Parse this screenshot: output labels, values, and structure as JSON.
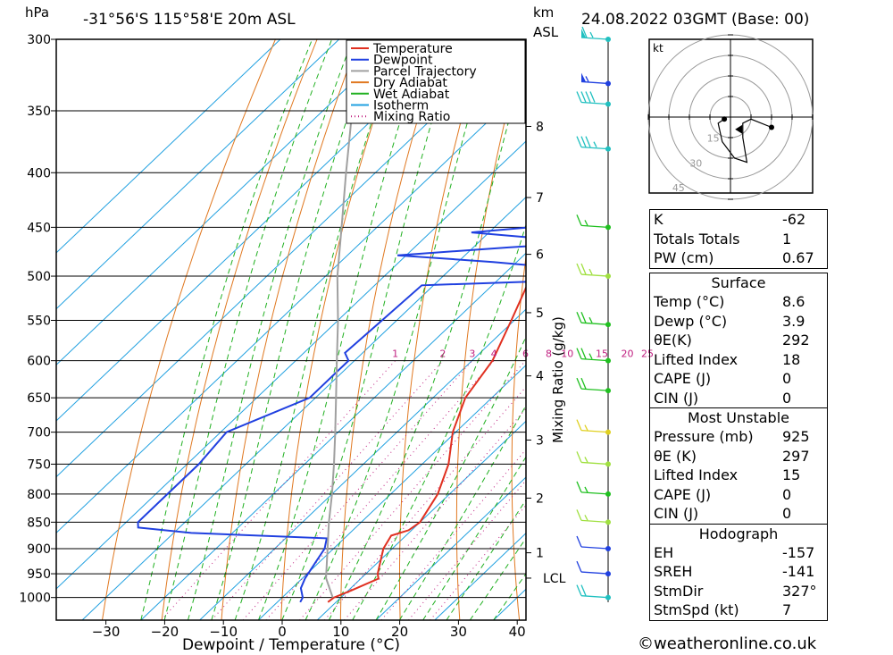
{
  "header": {
    "left_unit": "hPa",
    "location": "-31°56'S  115°58'E  20m  ASL",
    "km_unit": "km",
    "km_sub": "ASL",
    "datetime": "24.08.2022  03GMT  (Base: 00)"
  },
  "footer": {
    "copyright": "©weatheronline.co.uk"
  },
  "chart_data": {
    "type": "line",
    "title": "",
    "xlabel": "Dewpoint / Temperature (°C)",
    "ylabel": "hPa",
    "secondary_ylabel": "Mixing Ratio (g/kg)",
    "xlim": [
      -40,
      40
    ],
    "ylim": [
      1050,
      300
    ],
    "x_ticks": [
      "−30",
      "−20",
      "−10",
      "0",
      "10",
      "20",
      "30",
      "40"
    ],
    "x_tick_values": [
      -30,
      -20,
      -10,
      0,
      10,
      20,
      30,
      40
    ],
    "pressure_ticks": [
      300,
      350,
      400,
      450,
      500,
      550,
      600,
      650,
      700,
      750,
      800,
      850,
      900,
      950,
      1000
    ],
    "km_ticks": [
      {
        "label": "8",
        "p": 362
      },
      {
        "label": "7",
        "p": 422
      },
      {
        "label": "6",
        "p": 477
      },
      {
        "label": "5",
        "p": 541
      },
      {
        "label": "4",
        "p": 620
      },
      {
        "label": "3",
        "p": 712
      },
      {
        "label": "2",
        "p": 807
      },
      {
        "label": "1",
        "p": 908
      },
      {
        "label": "LCL",
        "p": 959
      }
    ],
    "mixing_ratio_labels": [
      "1",
      "2",
      "3",
      "4",
      "6",
      "8",
      "10",
      "15",
      "20",
      "25"
    ],
    "mixing_ratio_values": [
      1,
      2,
      3,
      4,
      6,
      8,
      10,
      15,
      20,
      25
    ],
    "legend": {
      "placement": "top",
      "entries": [
        {
          "name": "Temperature",
          "color": "#e03020",
          "style": "solid"
        },
        {
          "name": "Dewpoint",
          "color": "#2040e0",
          "style": "solid"
        },
        {
          "name": "Parcel Trajectory",
          "color": "#a0a0a0",
          "style": "solid"
        },
        {
          "name": "Dry Adiabat",
          "color": "#e07820",
          "style": "solid"
        },
        {
          "name": "Wet Adiabat",
          "color": "#20b020",
          "style": "solid"
        },
        {
          "name": "Isotherm",
          "color": "#20a0e0",
          "style": "solid"
        },
        {
          "name": "Mixing Ratio",
          "color": "#c02080",
          "style": "dotted"
        }
      ]
    },
    "series": [
      {
        "name": "Temperature",
        "color": "#e03020",
        "points": [
          {
            "p": 1010,
            "t": 8.6
          },
          {
            "p": 1000,
            "t": 8.8
          },
          {
            "p": 985,
            "t": 10.5
          },
          {
            "p": 960,
            "t": 13.0
          },
          {
            "p": 950,
            "t": 12.0
          },
          {
            "p": 900,
            "t": 8.5
          },
          {
            "p": 875,
            "t": 7.5
          },
          {
            "p": 865,
            "t": 9.5
          },
          {
            "p": 850,
            "t": 10.0
          },
          {
            "p": 800,
            "t": 8.0
          },
          {
            "p": 750,
            "t": 4.5
          },
          {
            "p": 700,
            "t": -0.5
          },
          {
            "p": 650,
            "t": -4.5
          },
          {
            "p": 600,
            "t": -6.5
          },
          {
            "p": 550,
            "t": -10.5
          },
          {
            "p": 500,
            "t": -15.0
          },
          {
            "p": 460,
            "t": -19.5
          },
          {
            "p": 450,
            "t": -19.5
          },
          {
            "p": 400,
            "t": -25.0
          },
          {
            "p": 350,
            "t": -33.0
          },
          {
            "p": 300,
            "t": -43.0
          }
        ]
      },
      {
        "name": "Dewpoint",
        "color": "#2040e0",
        "points": [
          {
            "p": 1010,
            "t": 3.9
          },
          {
            "p": 1000,
            "t": 3.5
          },
          {
            "p": 980,
            "t": 1.5
          },
          {
            "p": 960,
            "t": 0.5
          },
          {
            "p": 930,
            "t": -0.5
          },
          {
            "p": 900,
            "t": -1.5
          },
          {
            "p": 880,
            "t": -3.0
          },
          {
            "p": 870,
            "t": -27.0
          },
          {
            "p": 860,
            "t": -37.0
          },
          {
            "p": 850,
            "t": -38.0
          },
          {
            "p": 800,
            "t": -38.0
          },
          {
            "p": 750,
            "t": -38.0
          },
          {
            "p": 700,
            "t": -39.0
          },
          {
            "p": 650,
            "t": -31.0
          },
          {
            "p": 600,
            "t": -31.0
          },
          {
            "p": 590,
            "t": -33.0
          },
          {
            "p": 550,
            "t": -32.5
          },
          {
            "p": 510,
            "t": -32.0
          },
          {
            "p": 505,
            "t": -10.0
          },
          {
            "p": 495,
            "t": -4.5
          },
          {
            "p": 485,
            "t": -24.0
          },
          {
            "p": 478,
            "t": -41.5
          },
          {
            "p": 470,
            "t": -24.0
          },
          {
            "p": 465,
            "t": -11.5
          },
          {
            "p": 455,
            "t": -33.0
          },
          {
            "p": 450,
            "t": -24.0
          },
          {
            "p": 440,
            "t": -24.0
          },
          {
            "p": 400,
            "t": -30.0
          },
          {
            "p": 390,
            "t": -33.0
          },
          {
            "p": 350,
            "t": -38.0
          },
          {
            "p": 340,
            "t": -44.0
          },
          {
            "p": 300,
            "t": -60.0
          }
        ]
      },
      {
        "name": "Parcel Trajectory",
        "color": "#a0a0a0",
        "points": [
          {
            "p": 1000,
            "t": 8.6
          },
          {
            "p": 959,
            "t": 4.0
          },
          {
            "p": 900,
            "t": -1.0
          },
          {
            "p": 850,
            "t": -5.5
          },
          {
            "p": 800,
            "t": -10.0
          },
          {
            "p": 750,
            "t": -15.0
          },
          {
            "p": 700,
            "t": -20.5
          },
          {
            "p": 650,
            "t": -26.5
          },
          {
            "p": 600,
            "t": -33.0
          },
          {
            "p": 550,
            "t": -40.0
          },
          {
            "p": 500,
            "t": -48.0
          },
          {
            "p": 450,
            "t": -56.0
          },
          {
            "p": 400,
            "t": -65.0
          },
          {
            "p": 350,
            "t": -75.0
          },
          {
            "p": 300,
            "t": -86.0
          }
        ]
      }
    ],
    "wind_barbs": [
      {
        "p": 300,
        "speed_kt": 65,
        "color": "#20c0c0"
      },
      {
        "p": 330,
        "speed_kt": 55,
        "color": "#2040e0"
      },
      {
        "p": 345,
        "speed_kt": 40,
        "color": "#20c0c0"
      },
      {
        "p": 380,
        "speed_kt": 35,
        "color": "#20c0c0"
      },
      {
        "p": 450,
        "speed_kt": 15,
        "color": "#20c020"
      },
      {
        "p": 500,
        "speed_kt": 25,
        "color": "#a0e040"
      },
      {
        "p": 555,
        "speed_kt": 25,
        "color": "#20c020"
      },
      {
        "p": 600,
        "speed_kt": 25,
        "color": "#20c020"
      },
      {
        "p": 640,
        "speed_kt": 20,
        "color": "#20c020"
      },
      {
        "p": 700,
        "speed_kt": 15,
        "color": "#e0d020"
      },
      {
        "p": 750,
        "speed_kt": 15,
        "color": "#a0e040"
      },
      {
        "p": 800,
        "speed_kt": 15,
        "color": "#20c020"
      },
      {
        "p": 850,
        "speed_kt": 15,
        "color": "#a0e040"
      },
      {
        "p": 900,
        "speed_kt": 10,
        "color": "#2040e0"
      },
      {
        "p": 950,
        "speed_kt": 10,
        "color": "#2040e0"
      },
      {
        "p": 1000,
        "speed_kt": 20,
        "color": "#20c0c0"
      }
    ],
    "hodograph": {
      "unit": "kt",
      "ring_labels": [
        "15",
        "30",
        "45"
      ],
      "trace": [
        {
          "u": -3,
          "v": -1
        },
        {
          "u": -6,
          "v": -3
        },
        {
          "u": -4,
          "v": -12
        },
        {
          "u": 2,
          "v": -20
        },
        {
          "u": 8,
          "v": -22
        },
        {
          "u": 6,
          "v": -10
        },
        {
          "u": 6,
          "v": -3
        },
        {
          "u": 10,
          "v": -1
        },
        {
          "u": 20,
          "v": -5
        }
      ],
      "storm_motion_marker": {
        "u": 4,
        "v": -6
      }
    }
  },
  "indices": {
    "top": [
      {
        "label": "K",
        "value": "-62"
      },
      {
        "label": "Totals Totals",
        "value": "1"
      },
      {
        "label": "PW (cm)",
        "value": "0.67"
      }
    ],
    "surface": {
      "title": "Surface",
      "rows": [
        {
          "label": "Temp (°C)",
          "value": "8.6"
        },
        {
          "label": "Dewp (°C)",
          "value": "3.9"
        },
        {
          "label": "θE(K)",
          "value": "292"
        },
        {
          "label": "Lifted Index",
          "value": "18"
        },
        {
          "label": "CAPE (J)",
          "value": "0"
        },
        {
          "label": "CIN (J)",
          "value": "0"
        }
      ]
    },
    "most_unstable": {
      "title": "Most Unstable",
      "rows": [
        {
          "label": "Pressure (mb)",
          "value": "925"
        },
        {
          "label": "θE (K)",
          "value": "297"
        },
        {
          "label": "Lifted Index",
          "value": "15"
        },
        {
          "label": "CAPE (J)",
          "value": "0"
        },
        {
          "label": "CIN (J)",
          "value": "0"
        }
      ]
    },
    "hodograph_block": {
      "title": "Hodograph",
      "rows": [
        {
          "label": "EH",
          "value": "-157"
        },
        {
          "label": "SREH",
          "value": "-141"
        },
        {
          "label": "StmDir",
          "value": "327°"
        },
        {
          "label": "StmSpd (kt)",
          "value": "7"
        }
      ]
    }
  }
}
